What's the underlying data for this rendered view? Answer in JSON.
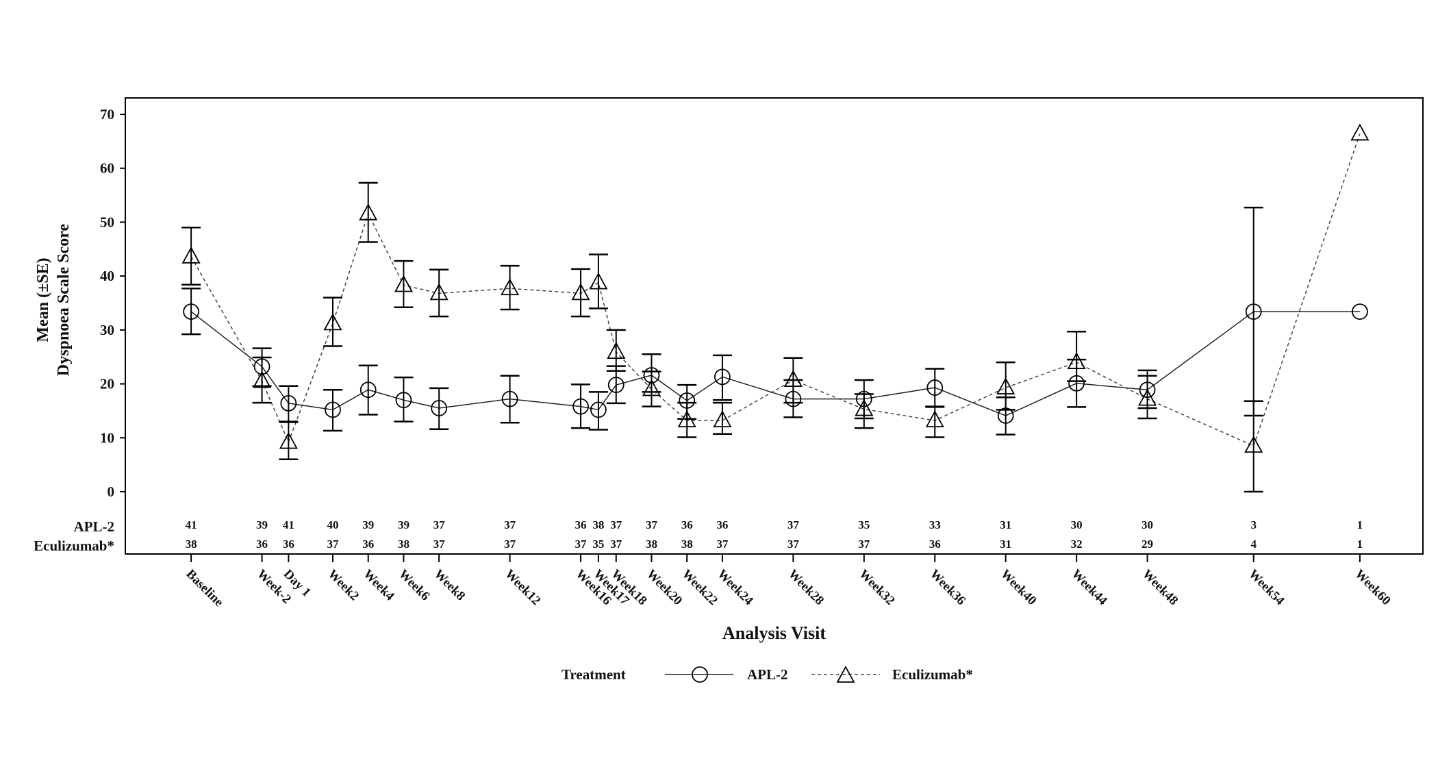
{
  "chart_data": {
    "type": "line",
    "title": "",
    "xlabel": "Analysis Visit",
    "ylabel": [
      "Mean (±SE)",
      "Dyspnoea Scale Score"
    ],
    "ylim": [
      0,
      70
    ],
    "yticks": [
      0,
      10,
      20,
      30,
      40,
      50,
      60,
      70
    ],
    "grid": false,
    "categories": [
      "Baseline",
      "Week-2",
      "Day 1",
      "Week2",
      "Week4",
      "Week6",
      "Week8",
      "Week12",
      "Week16",
      "Week17",
      "Week18",
      "Week20",
      "Week22",
      "Week24",
      "Week28",
      "Week32",
      "Week36",
      "Week40",
      "Week44",
      "Week48",
      "Week54",
      "Week60"
    ],
    "x_weeks": [
      -6,
      -2,
      -0.5,
      2,
      4,
      6,
      8,
      12,
      16,
      17,
      18,
      20,
      22,
      24,
      28,
      32,
      36,
      40,
      44,
      48,
      54,
      60
    ],
    "legend": {
      "title": "Treatment",
      "placement": "bottom"
    },
    "series": [
      {
        "name": "APL-2",
        "marker": "circle",
        "line": "solid",
        "values": [
          33.4,
          23.2,
          16.4,
          15.2,
          18.9,
          17.0,
          15.5,
          17.2,
          15.8,
          15.2,
          19.8,
          21.6,
          16.9,
          21.3,
          17.2,
          17.2,
          19.3,
          14.1,
          20.1,
          18.9,
          33.4,
          33.4
        ],
        "se_low": [
          29.2,
          19.6,
          13.0,
          11.3,
          14.3,
          13.0,
          11.6,
          12.8,
          11.8,
          11.5,
          16.4,
          18.5,
          13.5,
          17.0,
          13.8,
          13.6,
          15.7,
          10.6,
          15.7,
          15.5,
          14.1,
          null
        ],
        "se_high": [
          37.7,
          26.6,
          19.6,
          18.9,
          23.4,
          21.2,
          19.2,
          21.5,
          19.9,
          18.5,
          23.3,
          25.5,
          19.8,
          25.3,
          20.7,
          20.7,
          22.8,
          17.5,
          24.5,
          22.5,
          52.7,
          null
        ],
        "n": [
          41,
          39,
          41,
          40,
          39,
          39,
          37,
          37,
          36,
          38,
          37,
          37,
          36,
          36,
          37,
          35,
          33,
          31,
          30,
          30,
          3,
          1
        ]
      },
      {
        "name": "Eculizumab*",
        "marker": "triangle",
        "line": "dashed",
        "values": [
          43.6,
          20.5,
          9.2,
          31.2,
          51.6,
          38.3,
          36.8,
          37.7,
          36.8,
          38.8,
          25.9,
          19.0,
          13.2,
          13.2,
          20.7,
          15.3,
          13.2,
          19.3,
          24.0,
          17.2,
          8.5,
          66.4
        ],
        "se_low": [
          38.4,
          16.5,
          6.0,
          27.0,
          46.3,
          34.2,
          32.5,
          33.8,
          32.5,
          34.0,
          22.4,
          15.8,
          10.1,
          10.7,
          16.5,
          11.8,
          10.1,
          15.2,
          20.5,
          13.6,
          0.0,
          null
        ],
        "se_high": [
          49.0,
          24.9,
          12.9,
          36.0,
          57.3,
          42.8,
          41.2,
          41.9,
          41.3,
          44.0,
          30.0,
          22.3,
          16.5,
          16.5,
          24.8,
          18.1,
          15.8,
          24.0,
          29.7,
          21.5,
          16.8,
          null
        ],
        "n": [
          38,
          36,
          36,
          37,
          36,
          38,
          37,
          37,
          37,
          35,
          37,
          38,
          38,
          37,
          37,
          37,
          36,
          31,
          32,
          29,
          4,
          1
        ]
      }
    ]
  }
}
